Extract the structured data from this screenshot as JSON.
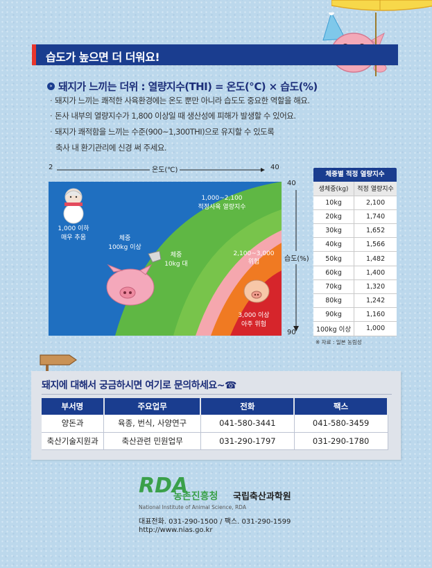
{
  "title": "습도가 높으면 더 더워요!",
  "heading": "돼지가 느끼는 더위 : 열량지수(THI) = 온도(℃) × 습도(%)",
  "bullets": [
    "돼지가 느끼는 쾌적한 사육환경에는 온도 뿐만 아니라 습도도 중요한 역할을 해요.",
    "돈사 내부의 열량지수가 1,800 이상일 때 생산성에 피해가 발생할 수 있어요.",
    "돼지가 쾌적함을 느끼는 수준(900~1,300THI)으로 유지할 수 있도록",
    "축사 내 환기관리에 신경 써 주세요."
  ],
  "chart": {
    "x_start": "2",
    "x_label": "온도(℃)",
    "x_end": "40",
    "y_start": "40",
    "y_label": "습도(%)",
    "y_end": "90",
    "zones": {
      "cold": [
        "1,000 이하",
        "매우 추움"
      ],
      "optimal": [
        "1,000~2,100",
        "적정사육 열량지수"
      ],
      "hot": [
        "2,100~3,000",
        "위험"
      ],
      "very_hot": [
        "3,000 이상",
        "아주 위험"
      ]
    },
    "labels": {
      "heavy": [
        "체중",
        "100kg 이상"
      ],
      "light": [
        "체중",
        "10kg 대"
      ]
    },
    "colors": {
      "blue": "#1f6fc0",
      "green": "#5fb744",
      "light_green": "#8ccf52",
      "pink": "#f5a7ae",
      "orange": "#f07a22",
      "red": "#d6252b"
    }
  },
  "table": {
    "title": "체중별 적정 열량지수",
    "headers": [
      "생체중(kg)",
      "적정 열량지수"
    ],
    "rows": [
      [
        "10kg",
        "2,100"
      ],
      [
        "20kg",
        "1,740"
      ],
      [
        "30kg",
        "1,652"
      ],
      [
        "40kg",
        "1,566"
      ],
      [
        "50kg",
        "1,482"
      ],
      [
        "60kg",
        "1,400"
      ],
      [
        "70kg",
        "1,320"
      ],
      [
        "80kg",
        "1,242"
      ],
      [
        "90kg",
        "1,160"
      ],
      [
        "100kg 이상",
        "1,000"
      ]
    ],
    "source": "※ 자료 : 일본 농림성"
  },
  "contact": {
    "title": "돼지에 대해서 궁금하시면 여기로 문의하세요~☎",
    "headers": [
      "부서명",
      "주요업무",
      "전화",
      "팩스"
    ],
    "rows": [
      [
        "양돈과",
        "육종, 번식, 사양연구",
        "041-580-3441",
        "041-580-3459"
      ],
      [
        "축산기술지원과",
        "축산관련 민원업무",
        "031-290-1797",
        "031-290-1780"
      ]
    ]
  },
  "footer": {
    "logo_mark": "RDA",
    "org_name": "농촌진흥청",
    "institute": "국립축산과학원",
    "english": "National Institute of Animal Science, RDA",
    "phone": "대표전화. 031-290-1500 / 팩스. 031-290-1599",
    "url": "http://www.nias.go.kr"
  }
}
